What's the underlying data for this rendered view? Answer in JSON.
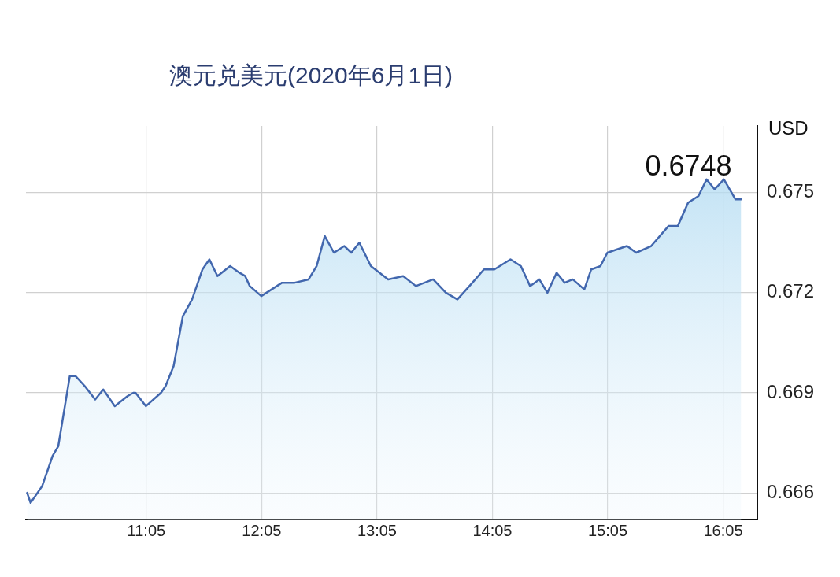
{
  "chart_data": {
    "type": "area",
    "title": "澳元兑美元(2020年6月1日)",
    "ylabel": "USD",
    "series": [
      {
        "color": "#4267ae",
        "x": [
          10.05,
          10.08,
          10.18,
          10.27,
          10.32,
          10.42,
          10.47,
          10.55,
          10.64,
          10.71,
          10.81,
          10.92,
          10.97,
          10.99,
          11.08,
          11.21,
          11.25,
          11.32,
          11.4,
          11.48,
          11.57,
          11.63,
          11.7,
          11.81,
          11.89,
          11.94,
          11.98,
          12.08,
          12.26,
          12.37,
          12.49,
          12.56,
          12.63,
          12.71,
          12.8,
          12.86,
          12.93,
          13.03,
          13.18,
          13.31,
          13.42,
          13.57,
          13.68,
          13.78,
          13.91,
          14.01,
          14.1,
          14.24,
          14.33,
          14.41,
          14.49,
          14.56,
          14.64,
          14.71,
          14.78,
          14.88,
          14.94,
          15.02,
          15.08,
          15.25,
          15.33,
          15.46,
          15.61,
          15.69,
          15.78,
          15.87,
          15.94,
          16.01,
          16.09,
          16.19,
          16.24
        ],
        "values": [
          0.666,
          0.6657,
          0.6662,
          0.6671,
          0.6674,
          0.6695,
          0.6695,
          0.6692,
          0.6688,
          0.6691,
          0.6686,
          0.6689,
          0.669,
          0.669,
          0.6686,
          0.669,
          0.6692,
          0.6698,
          0.6713,
          0.6718,
          0.6727,
          0.673,
          0.6725,
          0.6728,
          0.6726,
          0.6725,
          0.6722,
          0.6719,
          0.6723,
          0.6723,
          0.6724,
          0.6728,
          0.6737,
          0.6732,
          0.6734,
          0.6732,
          0.6735,
          0.6728,
          0.6724,
          0.6725,
          0.6722,
          0.6724,
          0.672,
          0.6718,
          0.6723,
          0.6727,
          0.6727,
          0.673,
          0.6728,
          0.6722,
          0.6724,
          0.672,
          0.6726,
          0.6723,
          0.6724,
          0.6721,
          0.6727,
          0.6728,
          0.6732,
          0.6734,
          0.6732,
          0.6734,
          0.674,
          0.674,
          0.6747,
          0.6749,
          0.6754,
          0.6751,
          0.6754,
          0.6748,
          0.6748
        ]
      }
    ],
    "xlim": [
      10.04,
      16.38
    ],
    "xticks": [
      {
        "value": 11.0833,
        "label": "11:05"
      },
      {
        "value": 12.0833,
        "label": "12:05"
      },
      {
        "value": 13.0833,
        "label": "13:05"
      },
      {
        "value": 14.0833,
        "label": "14:05"
      },
      {
        "value": 15.0833,
        "label": "15:05"
      },
      {
        "value": 16.0833,
        "label": "16:05"
      }
    ],
    "ylim": [
      0.6652,
      0.677
    ],
    "yticks": [
      0.666,
      0.669,
      0.672,
      0.675
    ],
    "annotations": [
      {
        "text": "0.6748",
        "x": 16.24,
        "y": 0.6748
      }
    ],
    "grid": true
  }
}
